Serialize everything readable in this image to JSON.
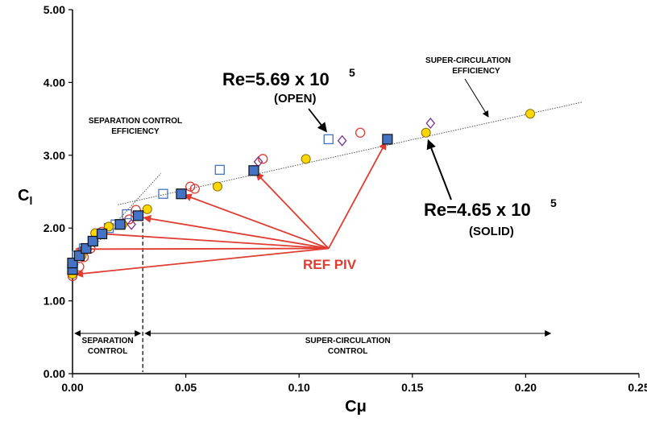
{
  "chart_data": {
    "type": "scatter",
    "xlabel": "Cμ",
    "ylabel": "Cl",
    "xlim": [
      0,
      0.25
    ],
    "ylim": [
      0,
      5
    ],
    "x_ticks": [
      "0.00",
      "0.05",
      "0.10",
      "0.15",
      "0.20",
      "0.25"
    ],
    "y_ticks": [
      "0.00",
      "1.00",
      "2.00",
      "3.00",
      "4.00",
      "5.00"
    ],
    "grid": false,
    "legend": "none",
    "series": [
      {
        "marker": "filled-square",
        "color": "#4472C4",
        "points": [
          [
            0.0,
            1.43
          ],
          [
            0.0,
            1.52
          ],
          [
            0.003,
            1.62
          ],
          [
            0.006,
            1.72
          ],
          [
            0.009,
            1.82
          ],
          [
            0.013,
            1.92
          ],
          [
            0.021,
            2.05
          ],
          [
            0.029,
            2.17
          ],
          [
            0.048,
            2.47
          ],
          [
            0.08,
            2.79
          ],
          [
            0.139,
            3.22
          ]
        ]
      },
      {
        "marker": "open-circle",
        "color": "#E03C31",
        "points": [
          [
            0.0,
            1.34
          ],
          [
            0.003,
            1.47
          ],
          [
            0.005,
            1.6
          ],
          [
            0.008,
            1.72
          ],
          [
            0.011,
            1.92
          ],
          [
            0.013,
            1.95
          ],
          [
            0.025,
            2.12
          ],
          [
            0.028,
            2.25
          ],
          [
            0.052,
            2.57
          ],
          [
            0.054,
            2.54
          ],
          [
            0.084,
            2.95
          ],
          [
            0.127,
            3.31
          ]
        ]
      },
      {
        "marker": "filled-circle",
        "color": "#FFD700",
        "points": [
          [
            0.0,
            1.37
          ],
          [
            0.004,
            1.62
          ],
          [
            0.01,
            1.93
          ],
          [
            0.016,
            2.02
          ],
          [
            0.022,
            2.05
          ],
          [
            0.033,
            2.26
          ],
          [
            0.064,
            2.57
          ],
          [
            0.103,
            2.95
          ],
          [
            0.156,
            3.31
          ],
          [
            0.202,
            3.57
          ]
        ]
      },
      {
        "marker": "open-square",
        "color": "#4472C4",
        "points": [
          [
            0.0,
            1.5
          ],
          [
            0.002,
            1.62
          ],
          [
            0.005,
            1.72
          ],
          [
            0.009,
            1.82
          ],
          [
            0.016,
            2.0
          ],
          [
            0.019,
            2.05
          ],
          [
            0.024,
            2.19
          ],
          [
            0.04,
            2.47
          ],
          [
            0.065,
            2.8
          ],
          [
            0.113,
            3.22
          ]
        ]
      },
      {
        "marker": "open-diamond",
        "color": "#7B3294",
        "points": [
          [
            0.004,
            1.63
          ],
          [
            0.026,
            2.05
          ],
          [
            0.082,
            2.91
          ],
          [
            0.119,
            3.2
          ],
          [
            0.158,
            3.44
          ]
        ]
      }
    ],
    "fit_lines": [
      {
        "points": [
          [
            0.02,
            2.32
          ],
          [
            0.225,
            3.73
          ]
        ]
      },
      {
        "points": [
          [
            0.0,
            1.42
          ],
          [
            0.039,
            2.75
          ]
        ]
      }
    ],
    "regions": [
      {
        "label": "SEPARATION CONTROL",
        "x_range": [
          0.0,
          0.031
        ]
      },
      {
        "label": "SUPER-CIRCULATION CONTROL",
        "x_range": [
          0.031,
          0.212
        ]
      }
    ],
    "annotations": {
      "re_open": {
        "text": "Re=5.69 x 10",
        "sup": "5",
        "sub": "(OPEN)",
        "arrow_to": [
          0.113,
          3.22
        ]
      },
      "re_solid": {
        "text": "Re=4.65 x 10",
        "sup": "5",
        "sub": "(SOLID)",
        "arrow_to": [
          0.156,
          3.31
        ]
      },
      "sce": {
        "line1": "SEPARATION CONTROL",
        "line2": "EFFICIENCY"
      },
      "supce": {
        "line1": "SUPER-CIRCULATION",
        "line2": "EFFICIENCY"
      },
      "ref_piv": {
        "text": "REF PIV",
        "color": "#E03C31",
        "hub": [
          0.113,
          1.72
        ],
        "targets": [
          [
            0.0,
            1.36
          ],
          [
            0.0,
            1.71
          ],
          [
            0.009,
            1.93
          ],
          [
            0.03,
            2.15
          ],
          [
            0.048,
            2.47
          ],
          [
            0.08,
            2.79
          ],
          [
            0.139,
            3.22
          ]
        ]
      }
    }
  }
}
